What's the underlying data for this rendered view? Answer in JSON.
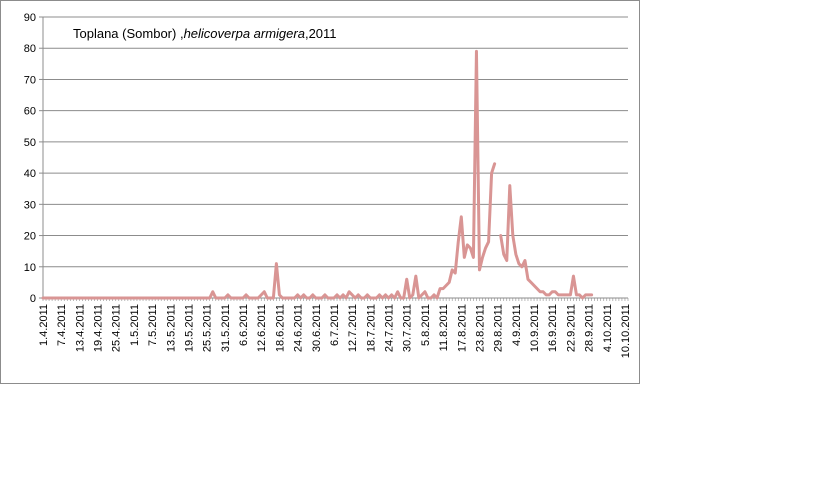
{
  "chart_data": {
    "type": "line",
    "title": "Toplana (Sombor) ,",
    "title_species": "helicoverpa armigera",
    "title_year": ",2011",
    "xlabel": "",
    "ylabel": "",
    "ylim": [
      0,
      90
    ],
    "y_ticks": [
      0,
      10,
      20,
      30,
      40,
      50,
      60,
      70,
      80,
      90
    ],
    "x_tick_labels": [
      "1.4.2011",
      "7.4.2011",
      "13.4.2011",
      "19.4.2011",
      "25.4.2011",
      "1.5.2011",
      "7.5.2011",
      "13.5.2011",
      "19.5.2011",
      "25.5.2011",
      "31.5.2011",
      "6.6.2011",
      "12.6.2011",
      "18.6.2011",
      "24.6.2011",
      "30.6.2011",
      "6.7.2011",
      "12.7.2011",
      "18.7.2011",
      "24.7.2011",
      "30.7.2011",
      "5.8.2011",
      "11.8.2011",
      "17.8.2011",
      "23.8.2011",
      "29.8.2011",
      "4.9.2011",
      "10.9.2011",
      "16.9.2011",
      "22.9.2011",
      "28.9.2011",
      "4.10.2011",
      "10.10.2011"
    ],
    "grid": "horizontal",
    "legend": "none",
    "series_color": "#d99594",
    "series": [
      {
        "values": [
          0,
          0,
          0,
          0,
          0,
          0,
          0,
          0,
          0,
          0,
          0,
          0,
          0,
          0,
          0,
          0,
          0,
          0,
          0,
          0,
          0,
          0,
          0,
          0,
          0,
          0,
          0,
          0,
          0,
          0,
          0,
          0,
          0,
          0,
          0,
          0,
          0,
          0,
          0,
          0,
          0,
          0,
          0,
          0,
          0,
          0,
          0,
          0,
          0,
          0,
          0,
          0,
          0,
          0,
          0,
          0,
          2,
          0,
          0,
          0,
          0,
          1,
          0,
          0,
          0,
          0,
          0,
          1,
          0,
          0,
          0,
          0,
          1,
          2,
          0,
          0,
          0,
          11,
          1,
          0,
          0,
          0,
          0,
          0,
          1,
          0,
          1,
          0,
          0,
          1,
          0,
          0,
          0,
          1,
          0,
          0,
          0,
          1,
          0,
          1,
          0,
          2,
          1,
          0,
          1,
          0,
          0,
          1,
          0,
          0,
          0,
          1,
          0,
          1,
          0,
          1,
          0,
          2,
          0,
          0,
          6,
          0,
          1,
          7,
          0,
          1,
          2,
          0,
          0,
          1,
          0,
          3,
          3,
          4,
          5,
          9,
          8,
          18,
          26,
          13,
          17,
          16,
          13,
          79,
          9,
          13,
          16,
          18,
          40,
          43,
          null,
          20,
          14,
          12,
          36,
          20,
          14,
          11,
          10,
          12,
          6,
          5,
          4,
          3,
          2,
          2,
          1,
          1,
          2,
          2,
          1,
          1,
          1,
          1,
          1,
          7,
          1,
          1,
          0,
          1,
          1,
          1
        ]
      }
    ]
  }
}
